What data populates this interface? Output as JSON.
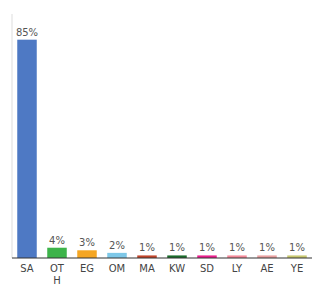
{
  "chart_data": {
    "type": "bar",
    "categories": [
      "SA",
      "OT\nH",
      "EG",
      "OM",
      "MA",
      "KW",
      "SD",
      "LY",
      "AE",
      "YE"
    ],
    "values": [
      85,
      4,
      3,
      2,
      1,
      1,
      1,
      1,
      1,
      1
    ],
    "value_labels": [
      "85%",
      "4%",
      "3%",
      "2%",
      "1%",
      "1%",
      "1%",
      "1%",
      "1%",
      "1%"
    ],
    "colors": [
      "#4e79c4",
      "#3db34a",
      "#f5a623",
      "#7ec8e8",
      "#c0452b",
      "#1a6b2a",
      "#e91e8c",
      "#f48a9a",
      "#e8a0a0",
      "#c8c870"
    ],
    "ylim": [
      0,
      95
    ],
    "data_labels": true,
    "tick_labels": "x",
    "grid": false
  }
}
